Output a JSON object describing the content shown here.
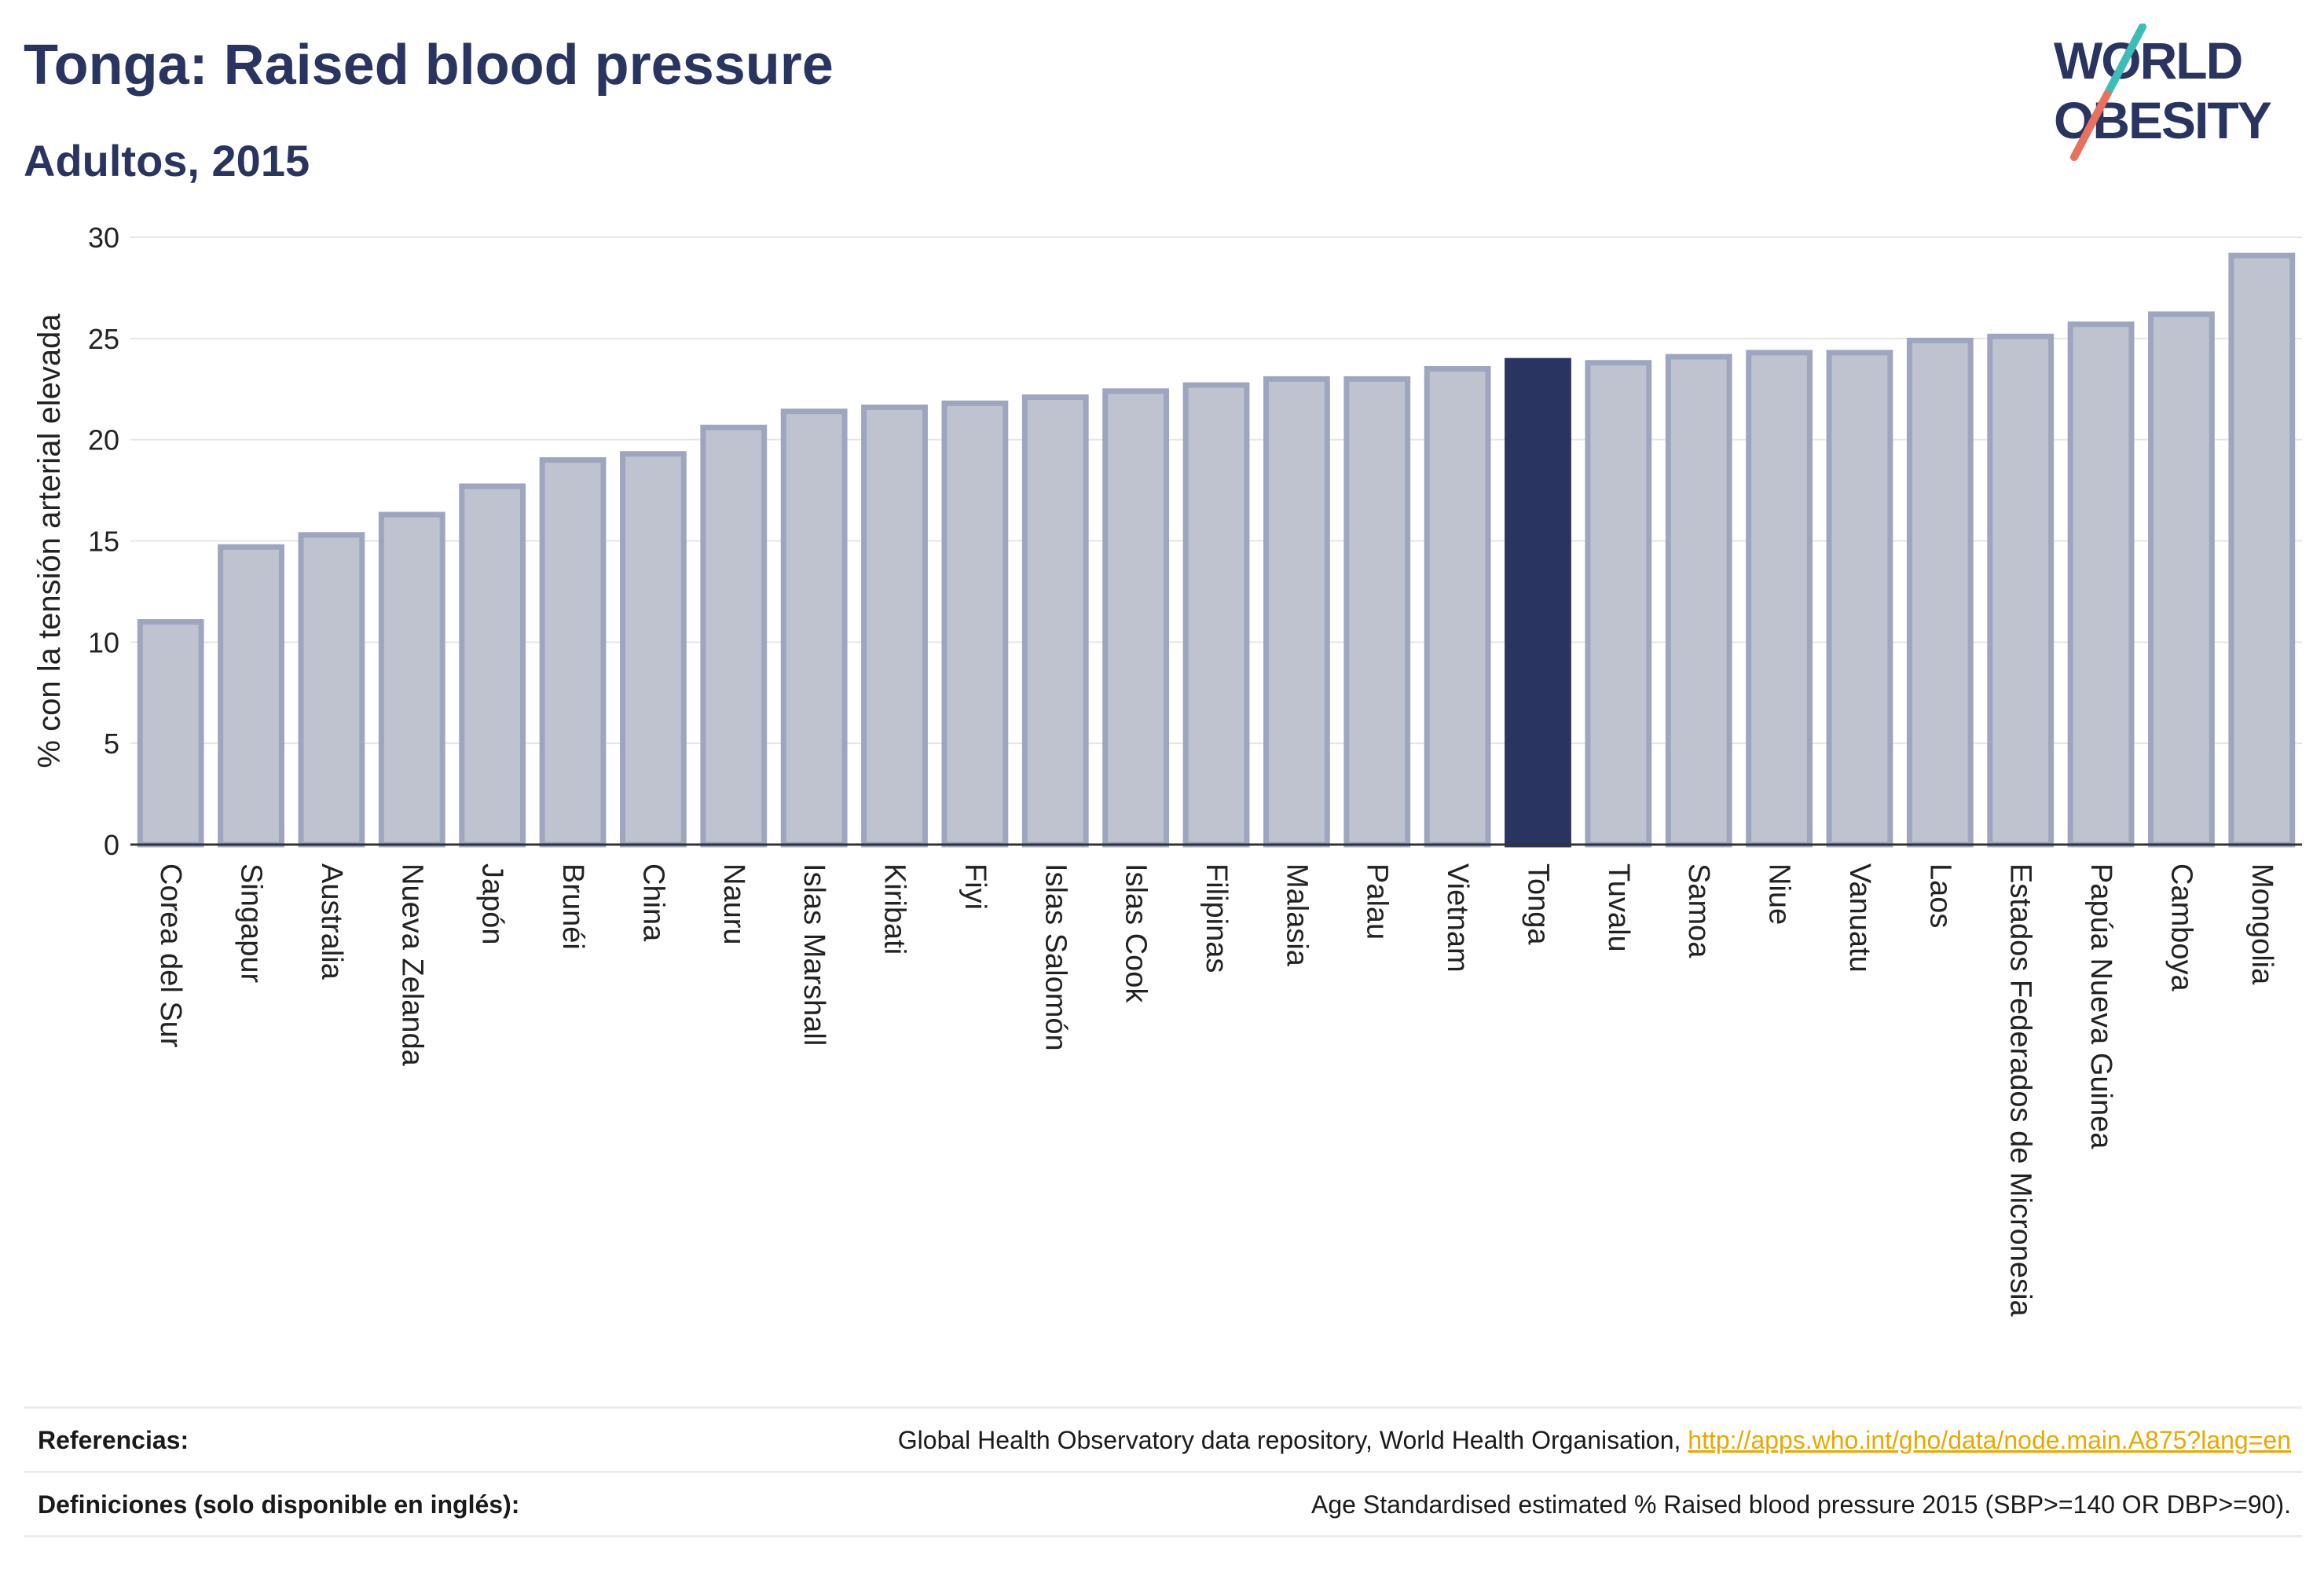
{
  "header": {
    "title": "Tonga: Raised blood pressure",
    "subtitle": "Adultos, 2015"
  },
  "logo": {
    "line1": "WORLD",
    "line2": "OBESITY",
    "colors": {
      "text": "#2a3460",
      "slash_top": "#3dbdb8",
      "slash_bottom": "#e8705e"
    }
  },
  "chart_data": {
    "type": "bar",
    "ylabel": "% con la tensión arterial elevada",
    "xlabel": "",
    "ylim": [
      0,
      30
    ],
    "yticks": [
      0,
      5,
      10,
      15,
      20,
      25,
      30
    ],
    "grid": true,
    "highlight": "Tonga",
    "colors": {
      "bar": "#bfc3d0",
      "bar_border": "#9ea5bf",
      "highlight": "#2a3460",
      "grid": "#e6e6e6",
      "axis": "#333333"
    },
    "categories": [
      "Corea del Sur",
      "Singapur",
      "Australia",
      "Nueva Zelanda",
      "Japón",
      "Brunéi",
      "China",
      "Nauru",
      "Islas Marshall",
      "Kiribati",
      "Fiyi",
      "Islas Salomón",
      "Islas Cook",
      "Filipinas",
      "Malasia",
      "Palau",
      "Vietnam",
      "Tonga",
      "Tuvalu",
      "Samoa",
      "Niue",
      "Vanuatu",
      "Laos",
      "Estados Federados de Micronesia",
      "Papúa Nueva Guinea",
      "Camboya",
      "Mongolia"
    ],
    "values": [
      11.0,
      14.7,
      15.3,
      16.3,
      17.7,
      19.0,
      19.3,
      20.6,
      21.4,
      21.6,
      21.8,
      22.1,
      22.4,
      22.7,
      23.0,
      23.0,
      23.5,
      23.9,
      23.8,
      24.1,
      24.3,
      24.3,
      24.9,
      25.1,
      25.7,
      26.2,
      29.1
    ]
  },
  "footer": {
    "references_label": "Referencias:",
    "references_text": "Global Health Observatory data repository, World Health Organisation, ",
    "references_link": "http://apps.who.int/gho/data/node.main.A875?lang=en",
    "definitions_label": "Definiciones (solo disponible en inglés):",
    "definitions_text": "Age Standardised estimated % Raised blood pressure 2015 (SBP>=140 OR DBP>=90)."
  }
}
